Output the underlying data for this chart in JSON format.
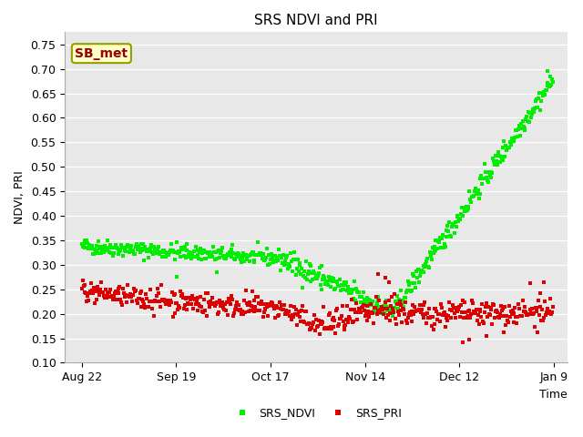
{
  "title": "SRS NDVI and PRI",
  "xlabel": "Time",
  "ylabel": "NDVI, PRI",
  "ylim": [
    0.1,
    0.775
  ],
  "yticks": [
    0.1,
    0.15,
    0.2,
    0.25,
    0.3,
    0.35,
    0.4,
    0.45,
    0.5,
    0.55,
    0.6,
    0.65,
    0.7,
    0.75
  ],
  "xtick_labels": [
    "Aug 22",
    "Sep 19",
    "Oct 17",
    "Nov 14",
    "Dec 12",
    "Jan 9"
  ],
  "ndvi_color": "#00ee00",
  "pri_color": "#dd0000",
  "plot_bg_color": "#e8e8e8",
  "fig_bg_color": "#ffffff",
  "sb_met_label": "SB_met",
  "sb_met_facecolor": "#ffffc8",
  "sb_met_edgecolor": "#999900",
  "sb_met_textcolor": "#990000",
  "marker_size": 3,
  "legend_labels": [
    "SRS_NDVI",
    "SRS_PRI"
  ],
  "title_fontsize": 11,
  "axis_fontsize": 9,
  "tick_fontsize": 9
}
